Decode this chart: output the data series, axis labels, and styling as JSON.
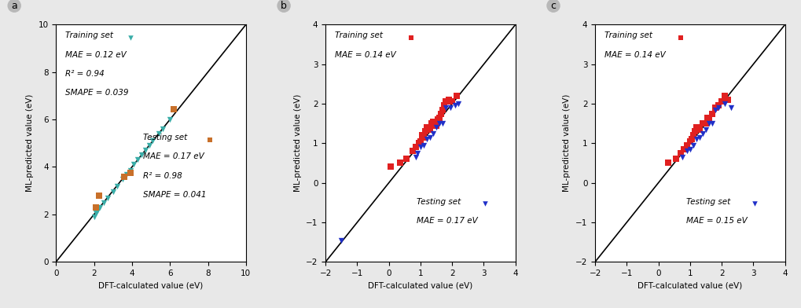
{
  "panel_a": {
    "train_x": [
      2.0,
      2.1,
      2.15,
      2.2,
      2.3,
      2.5,
      2.7,
      3.0,
      3.2,
      3.5,
      3.7,
      3.9,
      4.1,
      4.3,
      4.5,
      4.7,
      4.9,
      5.1,
      5.4,
      5.6,
      6.0
    ],
    "train_y": [
      1.9,
      2.05,
      2.1,
      2.15,
      2.3,
      2.5,
      2.7,
      2.95,
      3.2,
      3.5,
      3.7,
      3.85,
      4.1,
      4.3,
      4.5,
      4.7,
      4.9,
      5.1,
      5.4,
      5.6,
      6.0
    ],
    "test_x": [
      2.1,
      2.25,
      3.6,
      3.9,
      6.2
    ],
    "test_y": [
      2.3,
      2.8,
      3.6,
      3.75,
      6.45
    ],
    "train_color": "#3aada8",
    "test_color": "#c8702a",
    "train_label": "Training set",
    "test_label": "Testing set",
    "train_ann": "MAE = 0.12 eV",
    "train_r2": "R² = 0.94",
    "train_smape": "SMAPE = 0.039",
    "test_ann": "MAE = 0.17 eV",
    "test_r2": "R² = 0.98",
    "test_smape": "SMAPE = 0.041",
    "xlim": [
      0,
      10
    ],
    "ylim": [
      0,
      10
    ],
    "xticks": [
      0,
      2,
      4,
      6,
      8,
      10
    ],
    "yticks": [
      0,
      2,
      4,
      6,
      8,
      10
    ],
    "xlabel": "DFT-calculated value (eV)",
    "ylabel": "ML-predicted value (eV)",
    "panel_label": "a",
    "train_marker": "v",
    "test_marker": "s"
  },
  "panel_b": {
    "train_x": [
      0.05,
      0.35,
      0.55,
      0.75,
      0.85,
      0.95,
      1.0,
      1.05,
      1.1,
      1.15,
      1.2,
      1.3,
      1.35,
      1.4,
      1.5,
      1.55,
      1.6,
      1.65,
      1.7,
      1.75,
      1.8,
      1.9,
      2.0,
      2.15
    ],
    "train_y": [
      0.4,
      0.5,
      0.6,
      0.8,
      0.9,
      1.0,
      1.05,
      1.2,
      1.15,
      1.3,
      1.4,
      1.35,
      1.5,
      1.55,
      1.45,
      1.6,
      1.65,
      1.75,
      1.85,
      1.95,
      2.05,
      2.1,
      2.05,
      2.2
    ],
    "test_x": [
      -1.5,
      0.85,
      0.9,
      1.0,
      1.1,
      1.2,
      1.3,
      1.4,
      1.5,
      1.6,
      1.7,
      1.8,
      1.95,
      2.1,
      2.2
    ],
    "test_y": [
      -1.45,
      0.65,
      0.75,
      0.9,
      0.95,
      1.1,
      1.15,
      1.25,
      1.4,
      1.5,
      1.5,
      1.9,
      1.9,
      1.95,
      2.0
    ],
    "train_color": "#e02020",
    "test_color": "#2030c8",
    "train_label": "Training set",
    "test_label": "Testing set",
    "train_ann": "MAE = 0.14 eV",
    "test_ann": "MAE = 0.17 eV",
    "xlim": [
      -2,
      4
    ],
    "ylim": [
      -2,
      4
    ],
    "xticks": [
      -2,
      -1,
      0,
      1,
      2,
      3,
      4
    ],
    "yticks": [
      -2,
      -1,
      0,
      1,
      2,
      3,
      4
    ],
    "xlabel": "DFT-calculated value (eV)",
    "ylabel": "ML-predicted value (eV)",
    "panel_label": "b",
    "train_marker": "s",
    "test_marker": "v"
  },
  "panel_c": {
    "train_x": [
      0.3,
      0.55,
      0.7,
      0.8,
      0.9,
      1.0,
      1.05,
      1.1,
      1.15,
      1.2,
      1.3,
      1.4,
      1.5,
      1.55,
      1.6,
      1.7,
      1.8,
      1.9,
      2.0,
      2.1,
      2.2
    ],
    "train_y": [
      0.5,
      0.6,
      0.75,
      0.85,
      0.95,
      1.05,
      1.1,
      1.2,
      1.3,
      1.4,
      1.35,
      1.5,
      1.5,
      1.65,
      1.6,
      1.75,
      1.9,
      1.95,
      2.05,
      2.2,
      2.1
    ],
    "test_x": [
      0.75,
      0.9,
      1.0,
      1.1,
      1.2,
      1.3,
      1.4,
      1.5,
      1.6,
      1.7,
      1.8,
      1.9,
      2.1,
      2.3
    ],
    "test_y": [
      0.65,
      0.8,
      0.85,
      0.95,
      1.1,
      1.15,
      1.25,
      1.35,
      1.5,
      1.5,
      1.85,
      1.9,
      2.0,
      1.9
    ],
    "train_color": "#e02020",
    "test_color": "#2030c8",
    "train_label": "Training set",
    "test_label": "Testing set",
    "train_ann": "MAE = 0.14 eV",
    "test_ann": "MAE = 0.15 eV",
    "xlim": [
      -2,
      4
    ],
    "ylim": [
      -2,
      4
    ],
    "xticks": [
      -2,
      -1,
      0,
      1,
      2,
      3,
      4
    ],
    "yticks": [
      -2,
      -1,
      0,
      1,
      2,
      3,
      4
    ],
    "xlabel": "DFT-calculated value (eV)",
    "ylabel": "ML-predicted value (eV)",
    "panel_label": "c",
    "train_marker": "s",
    "test_marker": "v"
  },
  "bg_color": "#e8e8e8",
  "panel_bg": "#ffffff",
  "font_size": 7.5,
  "marker_size": 28
}
